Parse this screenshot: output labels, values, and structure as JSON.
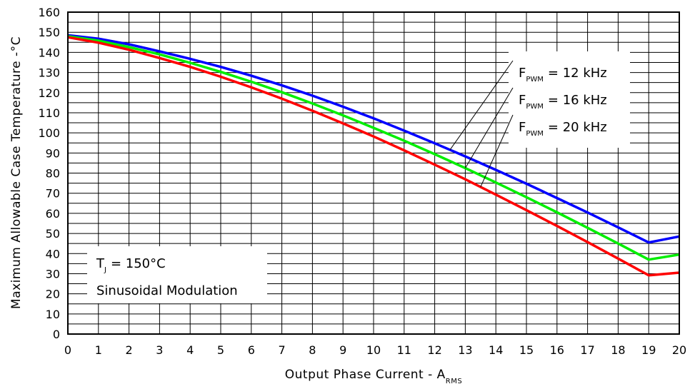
{
  "chart_data": {
    "type": "line",
    "xlabel": {
      "main": "Output Phase Current - A",
      "sub": "RMS"
    },
    "ylabel": "Maximum Allowable Case Temperature -°C",
    "xlim": [
      0,
      20
    ],
    "ylim": [
      0,
      160
    ],
    "x_ticks": [
      0,
      1,
      2,
      3,
      4,
      5,
      6,
      7,
      8,
      9,
      10,
      11,
      12,
      13,
      14,
      15,
      16,
      17,
      18,
      19,
      20
    ],
    "y_ticks": [
      0,
      10,
      20,
      30,
      40,
      50,
      60,
      70,
      80,
      90,
      100,
      110,
      120,
      130,
      140,
      150,
      160
    ],
    "grid": true,
    "x": [
      0,
      1,
      2,
      3,
      4,
      5,
      6,
      7,
      8,
      9,
      10,
      11,
      12,
      13,
      14,
      15,
      16,
      17,
      18,
      19,
      20
    ],
    "series": [
      {
        "color": "#0000ff",
        "values": [
          148.5,
          146.8,
          144,
          140.5,
          136.8,
          132.8,
          128.4,
          123.6,
          118.5,
          113,
          107.2,
          101.1,
          94.8,
          88.3,
          81.6,
          74.7,
          67.6,
          60.4,
          53,
          45.5,
          48.5
        ]
      },
      {
        "color": "#00ee00",
        "values": [
          148,
          145.8,
          142.6,
          139,
          134.8,
          130.3,
          125.4,
          120.2,
          114.6,
          108.7,
          102.5,
          96.1,
          89.4,
          82.5,
          75.3,
          68,
          60.5,
          52.8,
          45,
          37,
          39.5
        ]
      },
      {
        "color": "#ff0000",
        "values": [
          147.5,
          144.8,
          141.3,
          137.2,
          132.8,
          127.9,
          122.6,
          117,
          111,
          104.7,
          98.2,
          91.3,
          84.2,
          76.9,
          69.3,
          61.6,
          53.7,
          45.7,
          37.5,
          29.2,
          30.5
        ]
      }
    ],
    "annotations": {
      "pwm": [
        {
          "prefix": "F",
          "sub": "PWM",
          "text": "= 12 kHz"
        },
        {
          "prefix": "F",
          "sub": "PWM",
          "text": "= 16 kHz"
        },
        {
          "prefix": "F",
          "sub": "PWM",
          "text": "= 20 kHz"
        }
      ],
      "conditions": {
        "tj_prefix": "T",
        "tj_sub": "J",
        "tj_text": "= 150°C",
        "modulation": "Sinusoidal Modulation"
      }
    }
  }
}
